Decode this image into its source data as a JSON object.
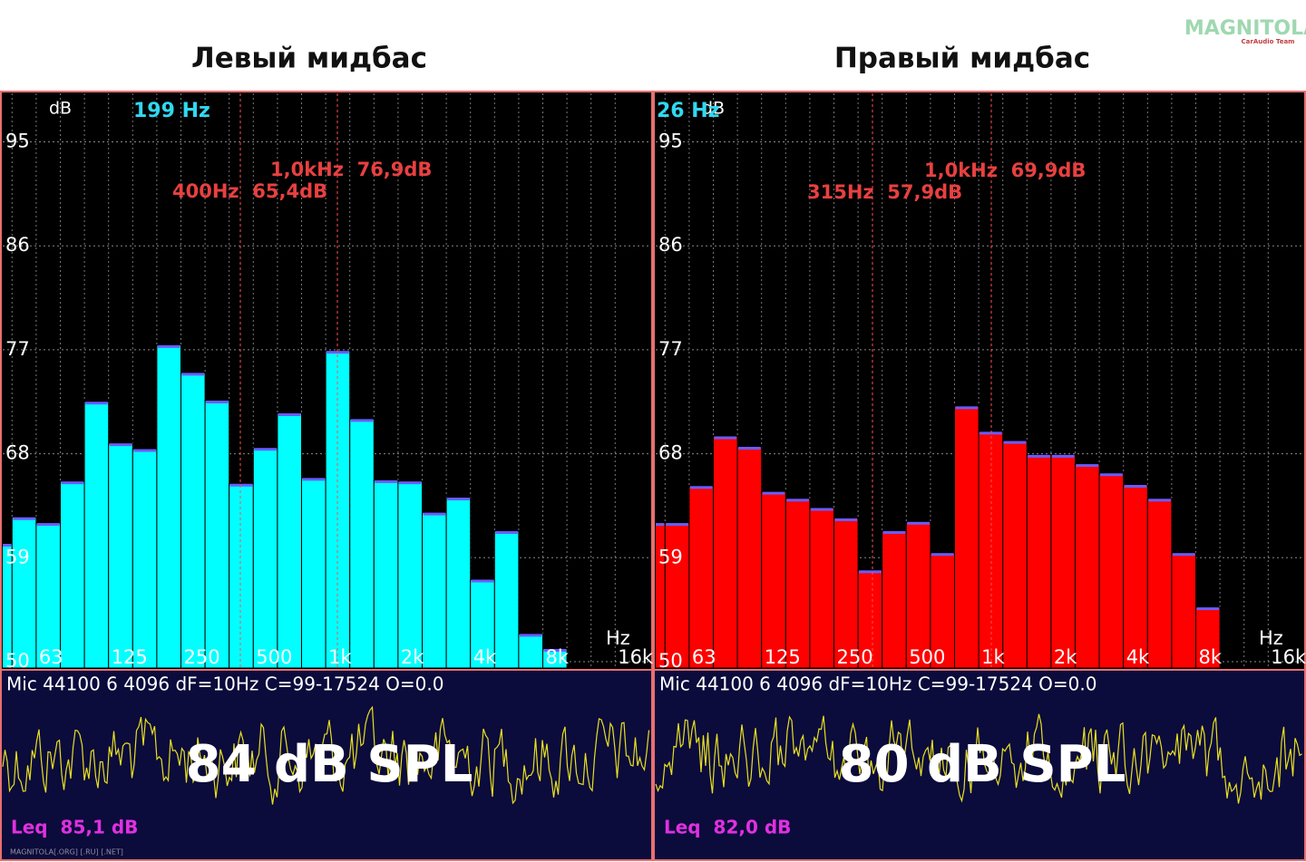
{
  "logo": {
    "text": "MAGNITOLA",
    "subtext": "CarAudio Team"
  },
  "chart_data": [
    {
      "type": "bar",
      "title": "Левый мидбас",
      "y_label": "dB",
      "x_label": "Hz",
      "cursor": "199 Hz",
      "categories": [
        null,
        null,
        "63",
        null,
        null,
        "125",
        null,
        null,
        "250",
        null,
        null,
        "500",
        null,
        null,
        "1k",
        null,
        null,
        "2k",
        null,
        null,
        "4k",
        null,
        null,
        "8k",
        null,
        null,
        "16k"
      ],
      "values": [
        60.2,
        62.5,
        62.0,
        65.6,
        72.5,
        68.9,
        68.4,
        77.4,
        75.0,
        72.6,
        65.4,
        68.5,
        71.5,
        65.9,
        76.9,
        71.0,
        65.7,
        65.6,
        62.9,
        64.2,
        57.1,
        61.3,
        52.4,
        51.1,
        null,
        null,
        null
      ],
      "color": "#00ffff",
      "cap_color": "#6a5cff",
      "ylim": [
        49.45,
        99.2
      ],
      "yticks": [
        50,
        59,
        68,
        77,
        86,
        95
      ],
      "grid": true,
      "annotations": [
        "1,0kHz  76,9dB",
        "400Hz  65,4dB"
      ],
      "status": "Mic 44100 6 4096 dF=10Hz C=99-17524 O=0.0",
      "spl": "84 dB SPL",
      "leq": "Leq  85,1 dB",
      "footer": "MAGNITOLA[.ORG] [.RU] [.NET]"
    },
    {
      "type": "bar",
      "title": "Правый мидбас",
      "y_label": "dB",
      "x_label": "Hz",
      "cursor": "26 Hz",
      "categories": [
        null,
        null,
        "63",
        null,
        null,
        "125",
        null,
        null,
        "250",
        null,
        null,
        "500",
        null,
        null,
        "1k",
        null,
        null,
        "2k",
        null,
        null,
        "4k",
        null,
        null,
        "8k",
        null,
        null,
        "16k"
      ],
      "values": [
        62.0,
        62.0,
        65.2,
        69.5,
        68.6,
        64.7,
        64.1,
        63.3,
        62.4,
        57.9,
        61.3,
        62.1,
        59.4,
        72.1,
        69.9,
        69.1,
        67.9,
        67.9,
        67.1,
        66.3,
        65.3,
        64.1,
        59.4,
        54.7,
        null,
        null,
        null
      ],
      "color": "#ff0000",
      "cap_color": "#6a5cff",
      "ylim": [
        49.45,
        99.2
      ],
      "yticks": [
        50,
        59,
        68,
        77,
        86,
        95
      ],
      "grid": true,
      "annotations": [
        "1,0kHz  69,9dB",
        "315Hz  57,9dB"
      ],
      "status": "Mic 44100 6 4096 dF=10Hz C=99-17524 O=0.0",
      "spl": "80 dB SPL",
      "leq": "Leq  82,0 dB"
    }
  ]
}
